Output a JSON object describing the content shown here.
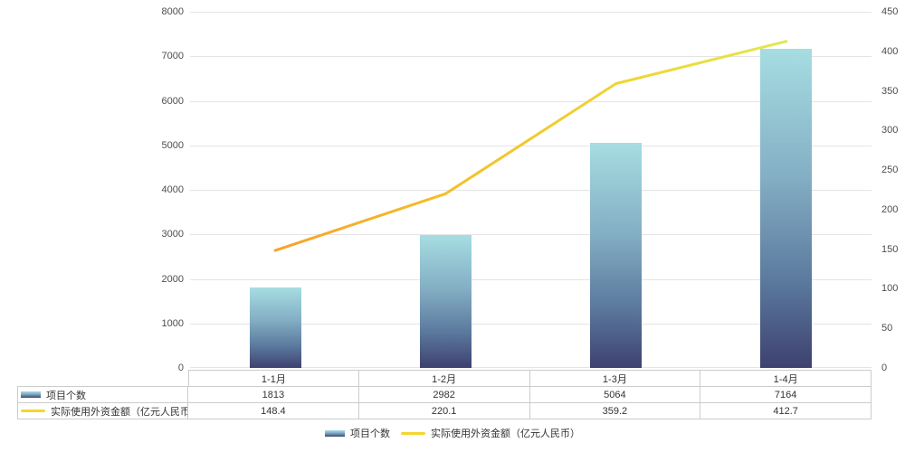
{
  "chart_data": {
    "type": "combo",
    "title": "",
    "categories": [
      "1-1月",
      "1-2月",
      "1-3月",
      "1-4月"
    ],
    "series": [
      {
        "name": "项目个数",
        "type": "bar",
        "axis": "left",
        "values": [
          1813,
          2982,
          5064,
          7164
        ]
      },
      {
        "name": "实际使用外资金额（亿元人民币）",
        "type": "line",
        "axis": "right",
        "values": [
          148.4,
          220.1,
          359.2,
          412.7
        ]
      }
    ],
    "left_axis": {
      "min": 0,
      "max": 8000,
      "step": 1000,
      "tick_labels": [
        "0",
        "1000",
        "2000",
        "3000",
        "4000",
        "5000",
        "6000",
        "7000",
        "8000"
      ]
    },
    "right_axis": {
      "min": 0,
      "max": 450,
      "step": 50,
      "tick_labels": [
        "0",
        "50",
        "100",
        "150",
        "200",
        "250",
        "300",
        "350",
        "400",
        "450"
      ]
    },
    "grid": true,
    "legend_position": "bottom",
    "data_table_shown": true,
    "table_values": {
      "bar_row": [
        "1813",
        "2982",
        "5064",
        "7164"
      ],
      "line_row": [
        "148.4",
        "220.1",
        "359.2",
        "412.7"
      ]
    }
  },
  "colors": {
    "bar_gradient_top": "#a6dde2",
    "bar_gradient_mid1": "#84afc4",
    "bar_gradient_mid2": "#5c7b9f",
    "bar_gradient_bottom": "#3e416f",
    "line_gradient_start": "#f7a22d",
    "line_gradient_mid1": "#f3c429",
    "line_gradient_mid2": "#ecd93a",
    "line_gradient_end": "#e3e751",
    "legend_line_swatch": "#f5d62f",
    "grid_line": "#e4e4e4",
    "axis_text": "#4d4d4d",
    "table_border": "#cccccc",
    "table_text": "#333333"
  }
}
